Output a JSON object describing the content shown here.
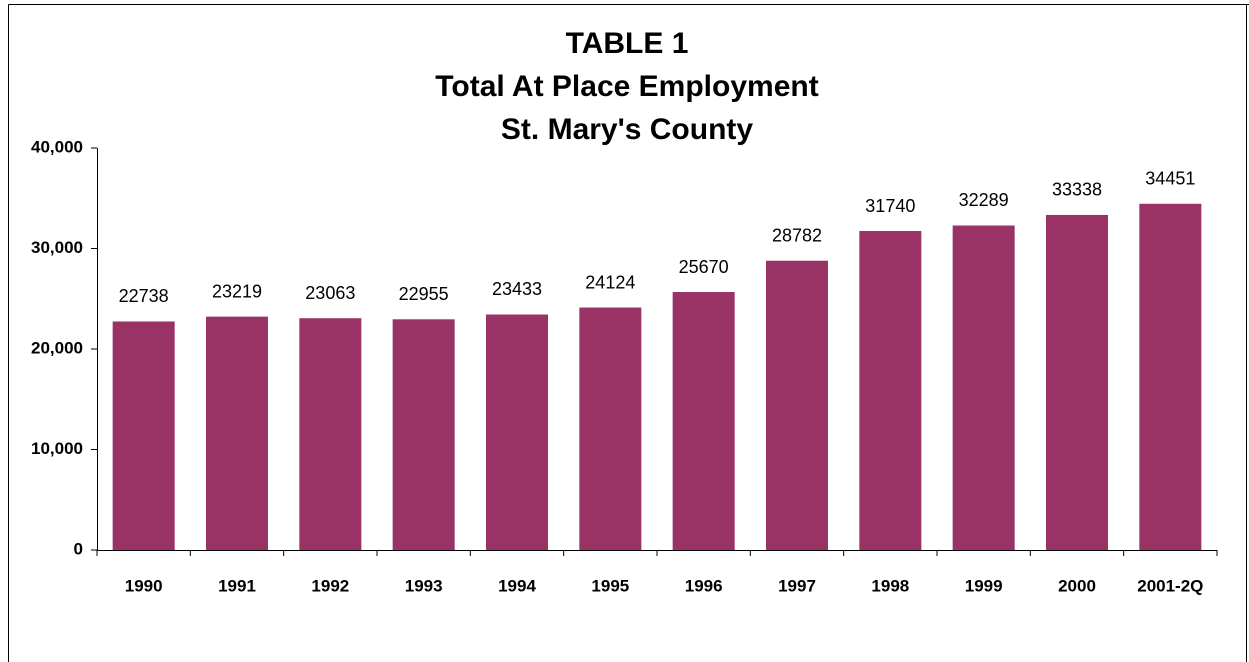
{
  "chart_data": {
    "type": "bar",
    "title_lines": [
      "TABLE 1",
      "Total At Place Employment",
      "St. Mary's County"
    ],
    "categories": [
      "1990",
      "1991",
      "1992",
      "1993",
      "1994",
      "1995",
      "1996",
      "1997",
      "1998",
      "1999",
      "2000",
      "2001-2Q"
    ],
    "values": [
      22738,
      23219,
      23063,
      22955,
      23433,
      24124,
      25670,
      28782,
      31740,
      32289,
      33338,
      34451
    ],
    "color": "#993366",
    "ylim": [
      0,
      40000
    ],
    "yticks": [
      0,
      {
        "value": 10000,
        "label": "10,000"
      },
      {
        "value": 20000,
        "label": "20,000"
      },
      {
        "value": 30000,
        "label": "30,000"
      },
      {
        "value": 40000,
        "label": "40,000"
      }
    ],
    "grid": false
  }
}
